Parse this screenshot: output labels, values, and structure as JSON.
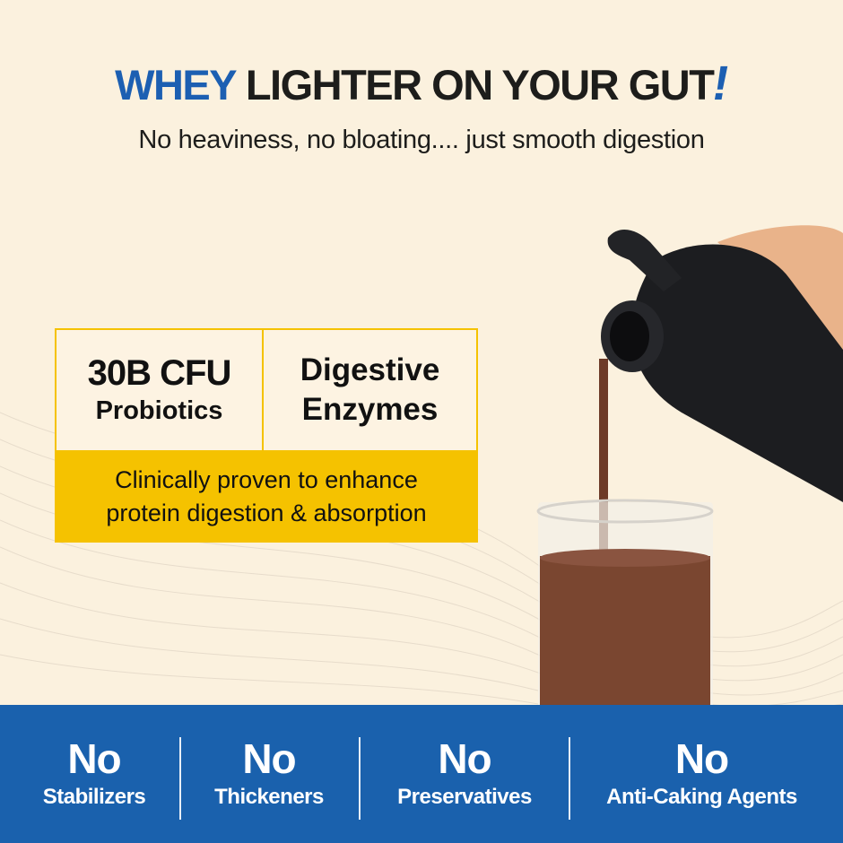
{
  "headline": {
    "accent": "WHEY",
    "rest": "LIGHTER ON YOUR GUT",
    "bang": "!"
  },
  "subheadline": "No heaviness, no bloating.... just smooth digestion",
  "features": {
    "probiotics": {
      "value": "30B CFU",
      "label": "Probiotics"
    },
    "enzymes": {
      "line1": "Digestive",
      "line2": "Enzymes"
    },
    "claim": {
      "line1": "Clinically proven to enhance",
      "line2": "protein digestion & absorption"
    }
  },
  "free_from": [
    {
      "prefix": "No",
      "label": "Stabilizers"
    },
    {
      "prefix": "No",
      "label": "Thickeners"
    },
    {
      "prefix": "No",
      "label": "Preservatives"
    },
    {
      "prefix": "No",
      "label": "Anti-Caking Agents"
    }
  ],
  "colors": {
    "brand_blue": "#1a61ad",
    "accent_yellow": "#f5c200",
    "background": "#fbf1de",
    "drink": "#7a4630"
  }
}
